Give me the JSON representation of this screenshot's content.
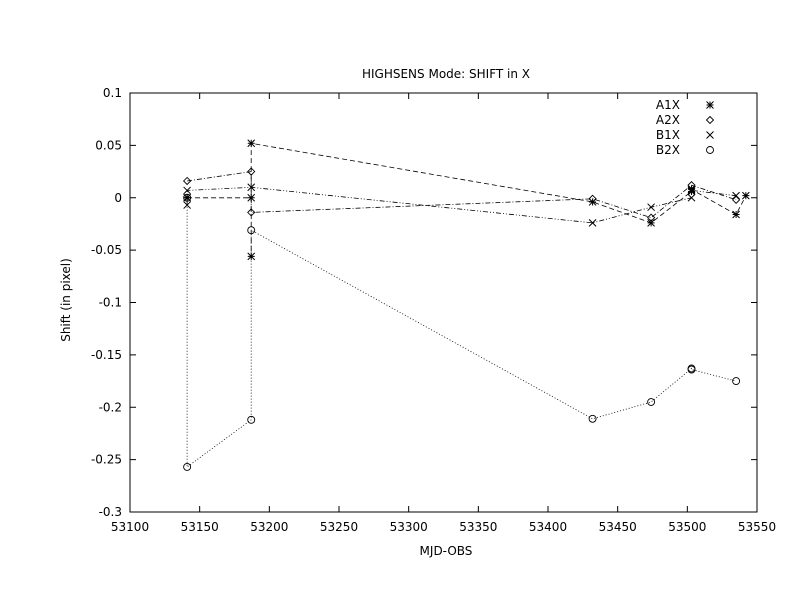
{
  "chart_data": {
    "type": "scatter",
    "title": "HIGHSENS Mode: SHIFT in X",
    "xlabel": "MJD-OBS",
    "ylabel": "Shift (in pixel)",
    "xlim": [
      53100,
      53550
    ],
    "ylim": [
      -0.3,
      0.1
    ],
    "xticks": [
      53100,
      53150,
      53200,
      53250,
      53300,
      53350,
      53400,
      53450,
      53500,
      53550
    ],
    "yticks": [
      -0.3,
      -0.25,
      -0.2,
      -0.15,
      -0.1,
      -0.05,
      0,
      0.05,
      0.1
    ],
    "xtick_labels": [
      "53100",
      "53150",
      "53200",
      "53250",
      "53300",
      "53350",
      "53400",
      "53450",
      "53500",
      "53550"
    ],
    "ytick_labels": [
      "-0.3",
      "-0.25",
      "-0.2",
      "-0.15",
      "-0.1",
      "-0.05",
      "0",
      "0.05",
      "0.1"
    ],
    "grid": false,
    "legend": "top-right",
    "series": [
      {
        "name": "A1X",
        "marker": "star",
        "line": "dashed",
        "points": [
          [
            53141,
            0.0
          ],
          [
            53141,
            0.0
          ],
          [
            53187,
            0.0
          ],
          [
            53187,
            -0.056
          ],
          [
            53187,
            0.052
          ],
          [
            53432,
            -0.004
          ],
          [
            53474,
            -0.024
          ],
          [
            53503,
            0.006
          ],
          [
            53503,
            0.008
          ],
          [
            53535,
            -0.016
          ],
          [
            53542,
            0.002
          ]
        ]
      },
      {
        "name": "A2X",
        "marker": "diamond",
        "line": "dashdot",
        "points": [
          [
            53141,
            0.016
          ],
          [
            53187,
            0.025
          ],
          [
            53187,
            -0.014
          ],
          [
            53432,
            -0.001
          ],
          [
            53474,
            -0.019
          ],
          [
            53503,
            0.012
          ],
          [
            53535,
            -0.002
          ]
        ]
      },
      {
        "name": "B1X",
        "marker": "cross",
        "line": "dashdotdot",
        "points": [
          [
            53141,
            -0.007
          ],
          [
            53141,
            0.007
          ],
          [
            53187,
            0.01
          ],
          [
            53432,
            -0.024
          ],
          [
            53474,
            -0.009
          ],
          [
            53503,
            0.0
          ],
          [
            53503,
            0.007
          ],
          [
            53535,
            0.002
          ]
        ]
      },
      {
        "name": "B2X",
        "marker": "circle",
        "line": "dotted",
        "points": [
          [
            53141,
            0.0
          ],
          [
            53141,
            -0.257
          ],
          [
            53187,
            -0.212
          ],
          [
            53187,
            -0.031
          ],
          [
            53432,
            -0.211
          ],
          [
            53474,
            -0.195
          ],
          [
            53503,
            -0.163
          ],
          [
            53503,
            -0.164
          ],
          [
            53535,
            -0.175
          ]
        ]
      }
    ]
  }
}
